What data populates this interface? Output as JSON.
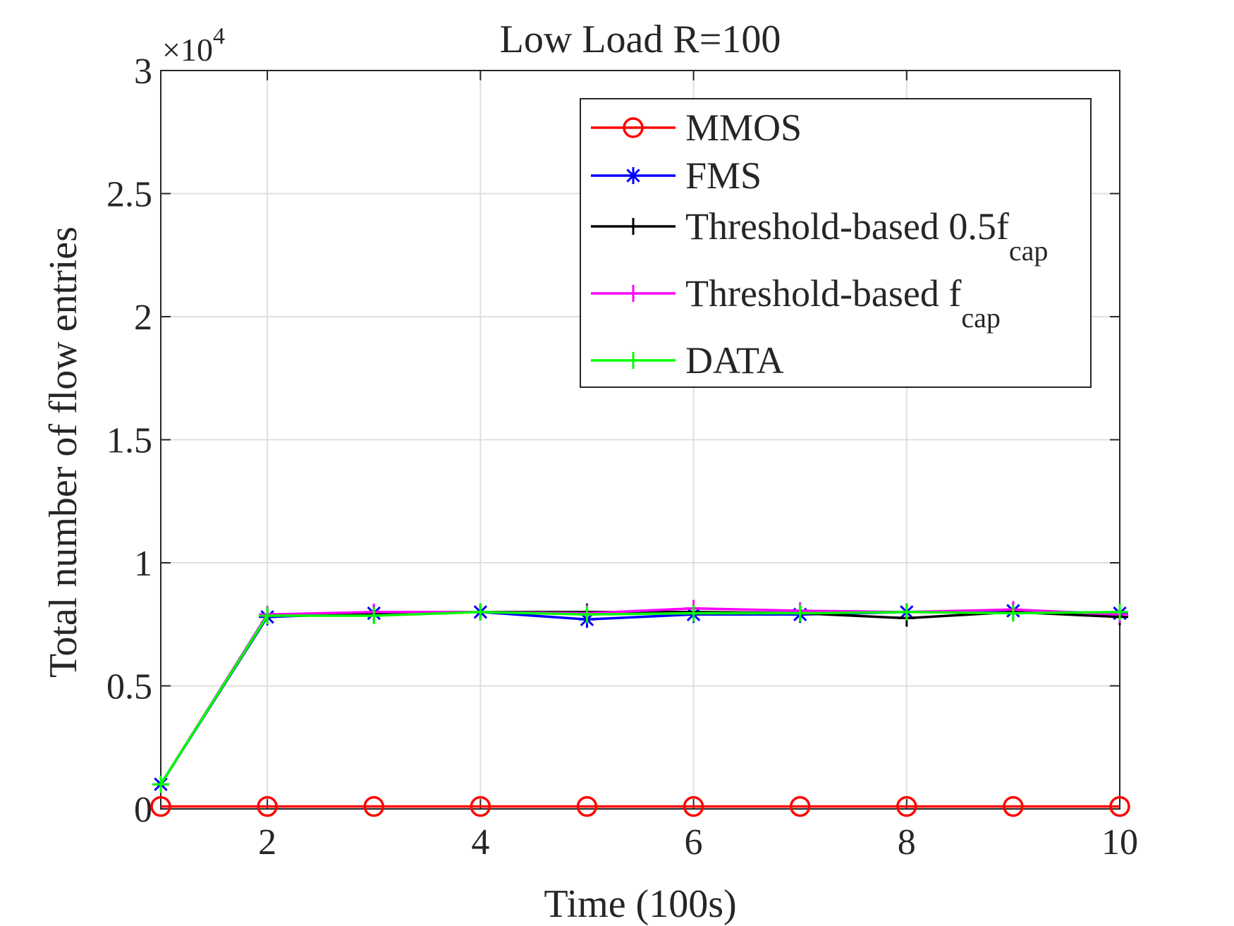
{
  "chart_data": {
    "type": "line",
    "title": "Low Load R=100",
    "xlabel": "Time (100s)",
    "ylabel": "Total number of flow entries",
    "exponent_label": {
      "base": "×10",
      "power": "4"
    },
    "xlim": [
      1,
      10
    ],
    "ylim": [
      0,
      3
    ],
    "x_ticks": [
      2,
      4,
      6,
      8,
      10
    ],
    "x_tick_labels": [
      "2",
      "4",
      "6",
      "8",
      "10"
    ],
    "y_ticks": [
      0,
      0.5,
      1,
      1.5,
      2,
      2.5,
      3
    ],
    "y_tick_labels": [
      "0",
      "0.5",
      "1",
      "1.5",
      "2",
      "2.5",
      "3"
    ],
    "grid": true,
    "legend_position": "top-right",
    "x": [
      1,
      2,
      3,
      4,
      5,
      6,
      7,
      8,
      9,
      10
    ],
    "series": [
      {
        "name": "MMOS",
        "sub": "",
        "color": "#ff0000",
        "marker": "circle",
        "values": [
          0.01,
          0.01,
          0.01,
          0.01,
          0.01,
          0.01,
          0.01,
          0.01,
          0.01,
          0.01
        ]
      },
      {
        "name": "FMS",
        "sub": "",
        "color": "#0000ff",
        "marker": "asterisk",
        "values": [
          0.1,
          0.78,
          0.795,
          0.8,
          0.77,
          0.79,
          0.79,
          0.8,
          0.805,
          0.795
        ]
      },
      {
        "name": "Threshold-based 0.5f",
        "sub": "cap",
        "color": "#000000",
        "marker": "plus",
        "values": [
          0.1,
          0.785,
          0.79,
          0.8,
          0.8,
          0.8,
          0.795,
          0.775,
          0.8,
          0.78
        ]
      },
      {
        "name": "Threshold-based f",
        "sub": "cap",
        "color": "#ff00ff",
        "marker": "plus",
        "values": [
          0.1,
          0.79,
          0.8,
          0.8,
          0.795,
          0.815,
          0.805,
          0.8,
          0.81,
          0.79
        ]
      },
      {
        "name": "DATA",
        "sub": "",
        "color": "#00ff00",
        "marker": "plus",
        "values": [
          0.1,
          0.785,
          0.785,
          0.8,
          0.79,
          0.795,
          0.795,
          0.8,
          0.795,
          0.8
        ]
      }
    ]
  }
}
